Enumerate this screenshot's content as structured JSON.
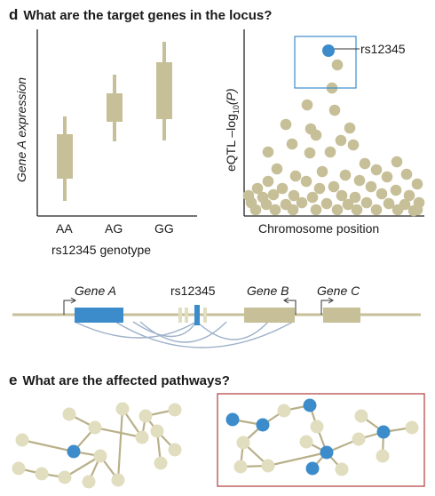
{
  "panel_d": {
    "letter": "d",
    "title": "What are the target genes in the locus?",
    "box_plot": {
      "ylabel": "Gene A expression",
      "xlabel": "rs12345 genotype",
      "categories": [
        "AA",
        "AG",
        "GG"
      ]
    },
    "manhattan": {
      "ylabel_prefix": "eQTL –log",
      "ylabel_sub": "10",
      "ylabel_suffix": "(P)",
      "xlabel": "Chromosome position",
      "lead_snp_label": "rs12345"
    },
    "locus": {
      "genes": [
        "Gene A",
        "Gene B",
        "Gene C"
      ],
      "snp_label": "rs12345"
    }
  },
  "panel_e": {
    "letter": "e",
    "title": "What are the affected pathways?"
  },
  "colors": {
    "tan": "#c6bf98",
    "node": "#e1ddbf",
    "blue": "#3c8ccc",
    "line": "#b9b08a",
    "red_border": "#b23b3b",
    "arc": "#9fb1ca"
  }
}
